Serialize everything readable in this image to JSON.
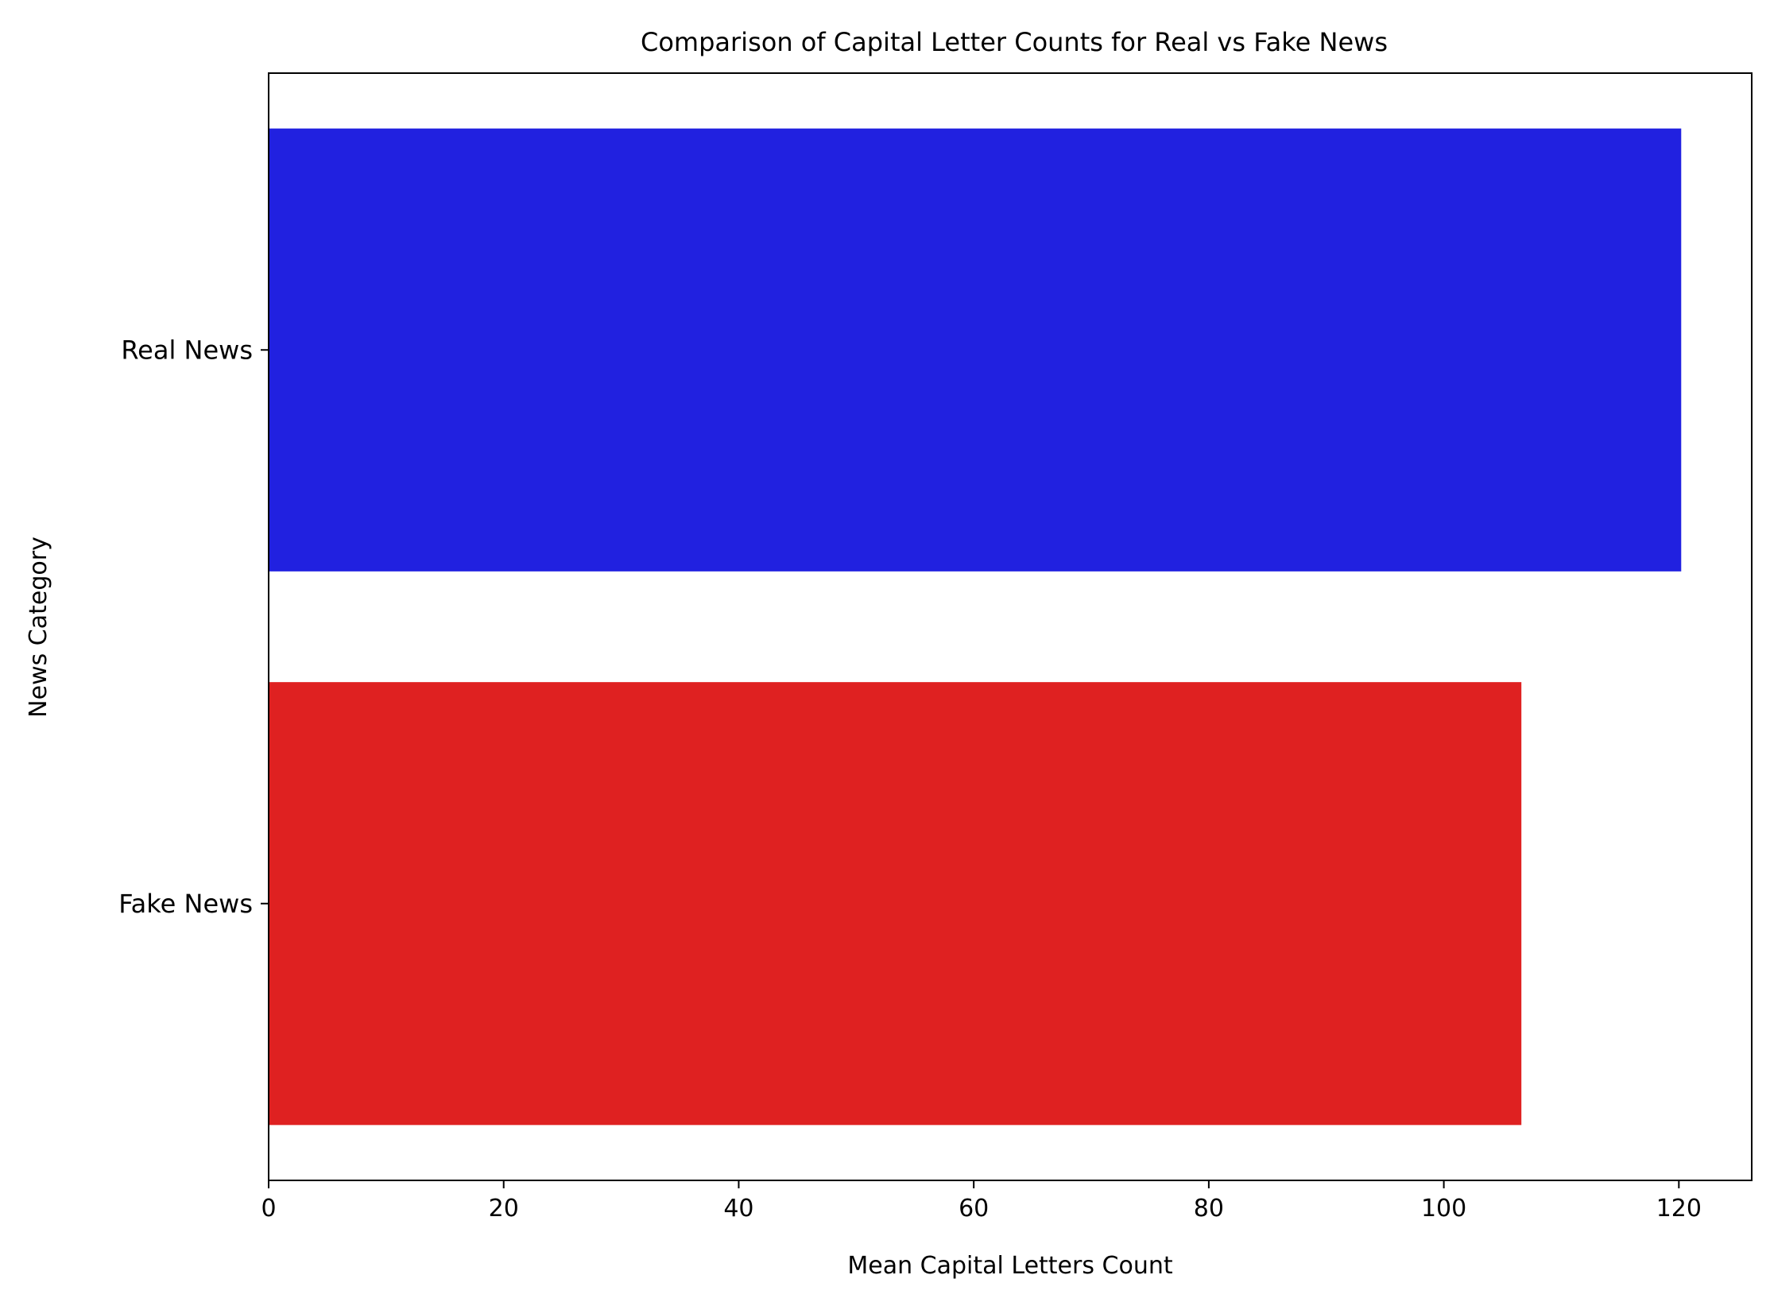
{
  "chart_data": {
    "type": "bar",
    "orientation": "horizontal",
    "title": "Comparison of Capital Letter Counts for Real vs Fake News",
    "xlabel": "Mean Capital Letters Count",
    "ylabel": "News Category",
    "categories": [
      "Real News",
      "Fake News"
    ],
    "values": [
      120.2,
      106.6
    ],
    "colors": [
      "#2121e0",
      "#df2121"
    ],
    "xlim": [
      0,
      126.2
    ],
    "xticks": [
      0,
      20,
      40,
      60,
      80,
      100,
      120
    ],
    "grid": false,
    "legend": "none"
  }
}
